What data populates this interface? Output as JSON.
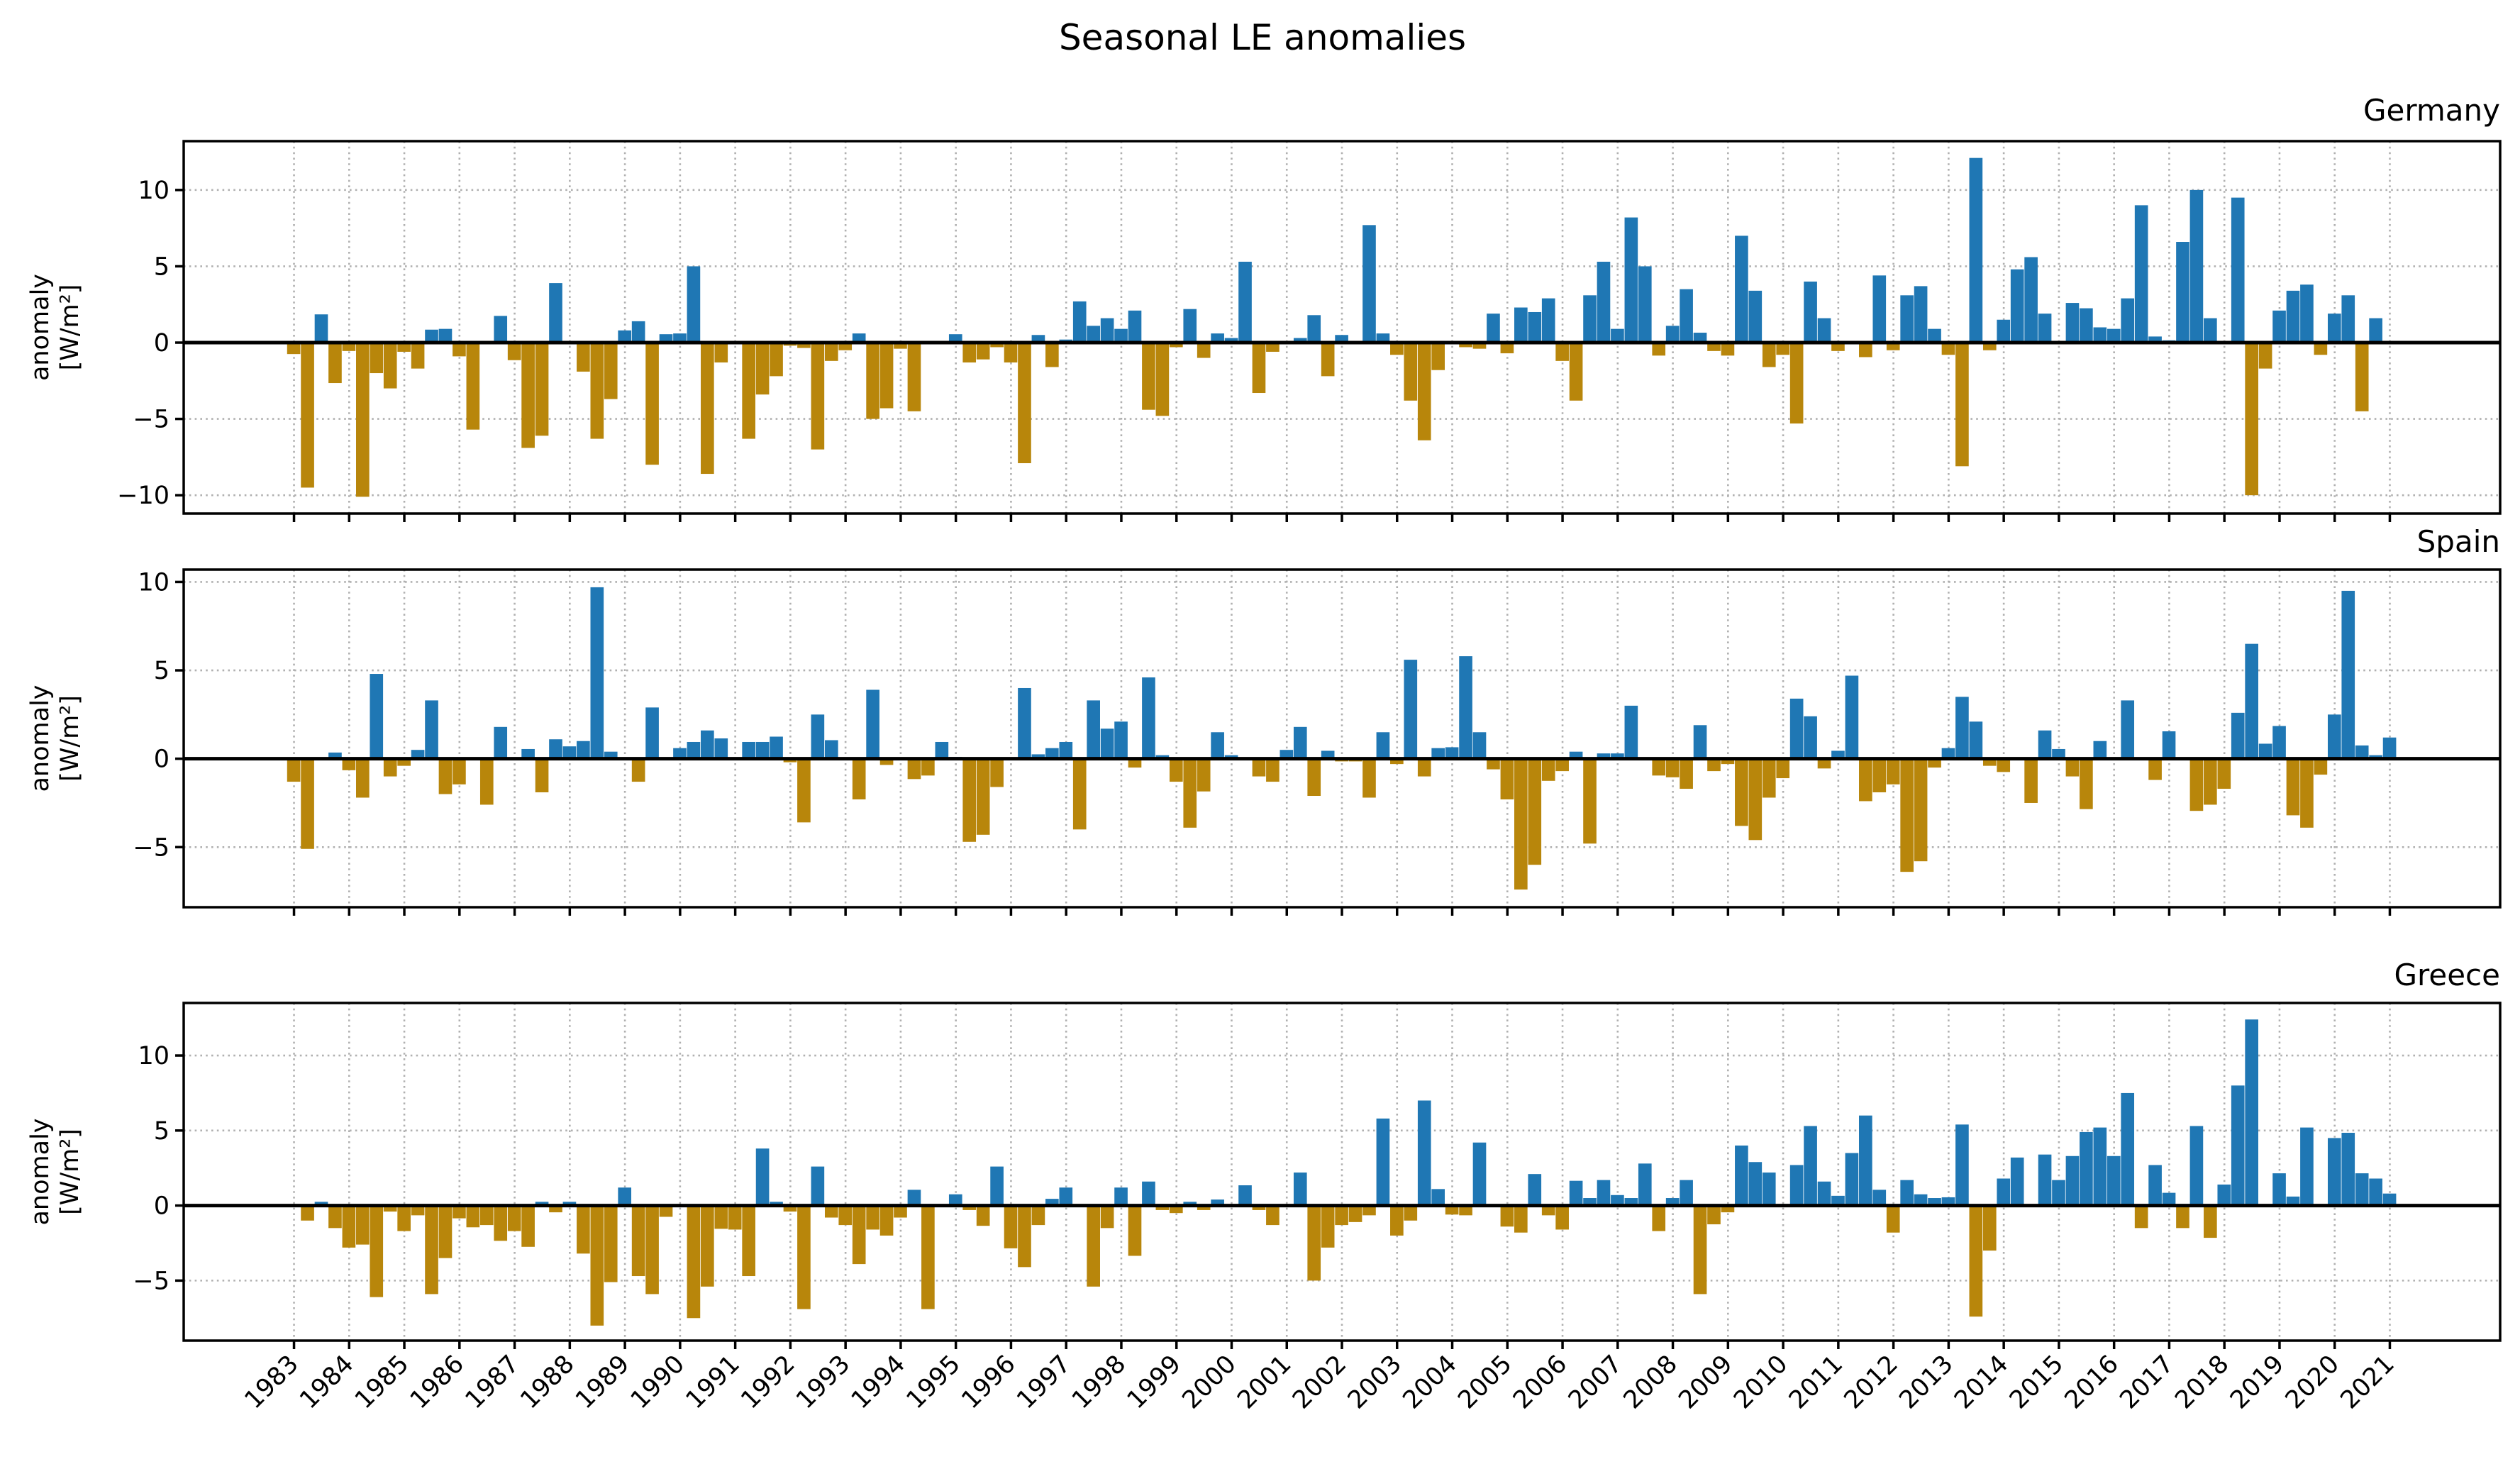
{
  "chart_data": {
    "type": "bar",
    "title": "Seasonal LE anomalies",
    "xlabel": "",
    "x_tick_labels": [
      "1983",
      "1984",
      "1985",
      "1986",
      "1987",
      "1988",
      "1989",
      "1990",
      "1991",
      "1992",
      "1993",
      "1994",
      "1995",
      "1996",
      "1997",
      "1998",
      "1999",
      "2000",
      "2001",
      "2002",
      "2003",
      "2004",
      "2005",
      "2006",
      "2007",
      "2008",
      "2009",
      "2010",
      "2011",
      "2012",
      "2013",
      "2014",
      "2015",
      "2016",
      "2017",
      "2018",
      "2019",
      "2020",
      "2021"
    ],
    "x_start": 1983,
    "bars_per_year": 4,
    "xlim": [
      1981.0,
      2023.0
    ],
    "grid": true,
    "colors": {
      "positive": "#1f77b4",
      "negative": "#b8860b",
      "zero_line": "#000000"
    },
    "panels": [
      {
        "name": "Germany",
        "ylabel": "anomaly\n[W/m²]",
        "ylim": [
          -11.2,
          13.2
        ],
        "yticks": [
          -10,
          -5,
          0,
          5,
          10
        ],
        "values": [
          -0.75,
          -9.5,
          1.85,
          -2.65,
          -0.55,
          -10.1,
          -2.0,
          -3.0,
          -0.6,
          -1.7,
          0.85,
          0.9,
          -0.9,
          -5.7,
          0.0,
          1.75,
          -1.15,
          -6.9,
          -6.1,
          3.9,
          0.0,
          -1.9,
          -6.3,
          -3.7,
          0.8,
          1.4,
          -8.0,
          0.55,
          0.6,
          5.0,
          -8.6,
          -1.3,
          0.0,
          -6.3,
          -3.4,
          -2.2,
          -0.2,
          -0.35,
          -7.0,
          -1.2,
          -0.5,
          0.6,
          -5.0,
          -4.3,
          -0.4,
          -4.5,
          0.0,
          0.0,
          0.55,
          -1.3,
          -1.1,
          -0.3,
          -1.3,
          -7.9,
          0.5,
          -1.6,
          0.2,
          2.7,
          1.1,
          1.6,
          0.9,
          2.1,
          -4.4,
          -4.8,
          -0.3,
          2.2,
          -1.0,
          0.6,
          0.3,
          5.3,
          -3.3,
          -0.6,
          0.1,
          0.3,
          1.8,
          -2.2,
          0.5,
          0.0,
          7.7,
          0.6,
          -0.8,
          -3.8,
          -6.4,
          -1.8,
          -0.1,
          -0.3,
          -0.4,
          1.9,
          -0.7,
          2.3,
          2.0,
          2.9,
          -1.2,
          -3.8,
          3.1,
          5.3,
          0.9,
          8.2,
          5.0,
          -0.85,
          1.1,
          3.5,
          0.65,
          -0.55,
          -0.85,
          7.0,
          3.4,
          -1.6,
          -0.8,
          -5.3,
          4.0,
          1.6,
          -0.55,
          0.1,
          -0.95,
          4.4,
          -0.5,
          3.1,
          3.7,
          0.9,
          -0.8,
          -8.1,
          12.1,
          -0.5,
          1.5,
          4.8,
          5.6,
          1.9,
          0.1,
          2.6,
          2.25,
          1.0,
          0.9,
          2.9,
          9.0,
          0.4,
          0.15,
          6.6,
          10.0,
          1.6,
          0.1,
          9.5,
          -10.0,
          -1.7,
          2.1,
          3.4,
          3.8,
          -0.8,
          1.9,
          3.1,
          -4.5,
          1.6,
          0.05
        ]
      },
      {
        "name": "Spain",
        "ylabel": "anomaly\n[W/m²]",
        "ylim": [
          -8.4,
          10.7
        ],
        "yticks": [
          -5,
          0,
          5,
          10
        ],
        "values": [
          -1.3,
          -5.1,
          0.0,
          0.35,
          -0.65,
          -2.2,
          4.8,
          -1.0,
          -0.4,
          0.5,
          3.3,
          -2.0,
          -1.45,
          0.0,
          -2.6,
          1.8,
          0.0,
          0.55,
          -1.9,
          1.1,
          0.7,
          1.0,
          9.7,
          0.4,
          0.0,
          -1.3,
          2.9,
          0.05,
          0.6,
          0.95,
          1.6,
          1.15,
          0.0,
          0.95,
          0.95,
          1.25,
          -0.2,
          -3.6,
          2.5,
          1.05,
          0.0,
          -2.3,
          3.9,
          -0.35,
          0.0,
          -1.15,
          -0.95,
          0.95,
          0.1,
          -4.7,
          -4.3,
          -1.6,
          0.0,
          4.0,
          0.25,
          0.6,
          0.95,
          -4.0,
          3.3,
          1.7,
          2.1,
          -0.5,
          4.6,
          0.2,
          -1.3,
          -3.9,
          -1.85,
          1.5,
          0.2,
          -0.05,
          -1.0,
          -1.3,
          0.5,
          1.8,
          -2.1,
          0.45,
          -0.15,
          -0.15,
          -2.2,
          1.5,
          -0.3,
          5.6,
          -1.0,
          0.6,
          0.65,
          5.8,
          1.5,
          -0.6,
          -2.3,
          -7.4,
          -6.0,
          -1.25,
          -0.7,
          0.4,
          -4.8,
          0.3,
          0.3,
          3.0,
          0.0,
          -0.95,
          -1.05,
          -1.7,
          1.9,
          -0.7,
          -0.3,
          -3.8,
          -4.6,
          -2.2,
          -1.1,
          3.4,
          2.4,
          -0.55,
          0.45,
          4.7,
          -2.4,
          -1.9,
          -1.45,
          -6.4,
          -5.8,
          -0.5,
          0.6,
          3.5,
          2.1,
          -0.4,
          -0.75,
          0.0,
          -2.5,
          1.6,
          0.55,
          -1.0,
          -2.85,
          1.0,
          0.0,
          3.3,
          -0.05,
          -1.2,
          1.55,
          0.0,
          -2.95,
          -2.6,
          -1.7,
          2.6,
          6.5,
          0.85,
          1.85,
          -3.2,
          -3.9,
          -0.9,
          2.5,
          9.5,
          0.75,
          0.2,
          1.2
        ]
      },
      {
        "name": "Greece",
        "ylabel": "anomaly\n[W/m²]",
        "ylim": [
          -9.0,
          13.5
        ],
        "yticks": [
          -5,
          0,
          5,
          10
        ],
        "values": [
          0.0,
          -1.0,
          0.25,
          -1.5,
          -2.8,
          -2.6,
          -6.1,
          -0.4,
          -1.7,
          -0.65,
          -5.9,
          -3.5,
          -0.85,
          -1.45,
          -1.3,
          -2.35,
          -1.7,
          -2.75,
          0.25,
          -0.45,
          0.25,
          -3.2,
          -8.0,
          -5.1,
          1.2,
          -4.7,
          -5.9,
          -0.75,
          0.0,
          -7.5,
          -5.4,
          -1.55,
          -1.6,
          -4.7,
          3.8,
          0.25,
          -0.4,
          -6.9,
          2.6,
          -0.8,
          -1.3,
          -3.9,
          -1.6,
          -2.0,
          -0.8,
          1.05,
          -6.9,
          0.0,
          0.75,
          -0.3,
          -1.35,
          2.6,
          -2.85,
          -4.1,
          -1.3,
          0.45,
          1.2,
          0.0,
          -5.4,
          -1.5,
          1.2,
          -3.35,
          1.6,
          -0.3,
          -0.5,
          0.25,
          -0.3,
          0.4,
          0.0,
          1.35,
          -0.3,
          -1.3,
          0.0,
          2.2,
          -5.0,
          -2.8,
          -1.3,
          -1.1,
          -0.65,
          5.8,
          -2.0,
          -1.0,
          7.0,
          1.1,
          -0.6,
          -0.65,
          4.2,
          0.1,
          -1.4,
          -1.8,
          2.1,
          -0.65,
          -1.6,
          1.65,
          0.5,
          1.7,
          0.7,
          0.5,
          2.8,
          -1.7,
          0.5,
          1.7,
          -5.9,
          -1.25,
          -0.45,
          4.0,
          2.9,
          2.2,
          0.1,
          2.7,
          5.3,
          1.6,
          0.65,
          3.5,
          6.0,
          1.05,
          -1.8,
          1.7,
          0.75,
          0.5,
          0.55,
          5.4,
          -7.4,
          -3.0,
          1.8,
          3.2,
          0.0,
          3.4,
          1.7,
          3.3,
          4.9,
          5.2,
          3.3,
          7.5,
          -1.5,
          2.7,
          0.85,
          -1.5,
          5.3,
          -2.15,
          1.4,
          8.0,
          12.4,
          0.0,
          2.15,
          0.6,
          5.2,
          0.0,
          4.5,
          4.85,
          2.15,
          1.8,
          0.8
        ]
      }
    ]
  }
}
